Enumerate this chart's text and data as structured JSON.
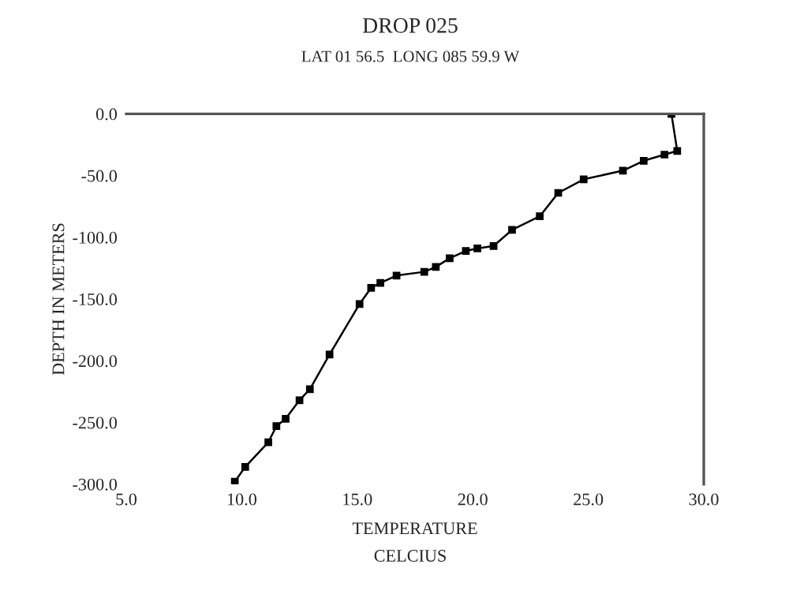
{
  "chart_data": {
    "type": "line",
    "title": "DROP 025",
    "subtitle": "LAT 01 56.5  LONG 085 59.9 W",
    "xlabel": "TEMPERATURE",
    "ylabel": "DEPTH IN METERS",
    "annotations": [
      "CELCIUS"
    ],
    "series": [
      {
        "color": "#000000",
        "x": [
          28.6,
          28.85,
          28.3,
          27.4,
          26.5,
          24.8,
          23.7,
          22.9,
          21.7,
          20.9,
          20.2,
          19.7,
          19.0,
          18.4,
          17.9,
          16.7,
          16.0,
          15.6,
          15.1,
          13.8,
          12.95,
          12.5,
          11.9,
          11.5,
          11.15,
          10.15,
          9.7
        ],
        "values": [
          0,
          -30,
          -33,
          -38,
          -46,
          -53,
          -64,
          -83,
          -94,
          -107,
          -109,
          -111,
          -117,
          -124,
          -128,
          -131,
          -137,
          -141,
          -154,
          -195,
          -223,
          -232,
          -247,
          -253,
          -266,
          -286,
          -298
        ]
      }
    ],
    "xlim": [
      5,
      30
    ],
    "ylim": [
      -300,
      0
    ],
    "xticks": [
      {
        "value": 5,
        "label": "5.0"
      },
      {
        "value": 10,
        "label": "10.0"
      },
      {
        "value": 15,
        "label": "15.0"
      },
      {
        "value": 20,
        "label": "20.0"
      },
      {
        "value": 25,
        "label": "25.0"
      },
      {
        "value": 30,
        "label": "30.0"
      }
    ],
    "yticks": [
      {
        "value": 0,
        "label": "0.0"
      },
      {
        "value": -50,
        "label": "-50.0"
      },
      {
        "value": -100,
        "label": "-100.0"
      },
      {
        "value": -150,
        "label": "-150.0"
      },
      {
        "value": -200,
        "label": "-200.0"
      },
      {
        "value": -250,
        "label": "-250.0"
      },
      {
        "value": -300,
        "label": "-300.0"
      }
    ],
    "grid": false,
    "marker": "square",
    "line_style": "solid"
  }
}
